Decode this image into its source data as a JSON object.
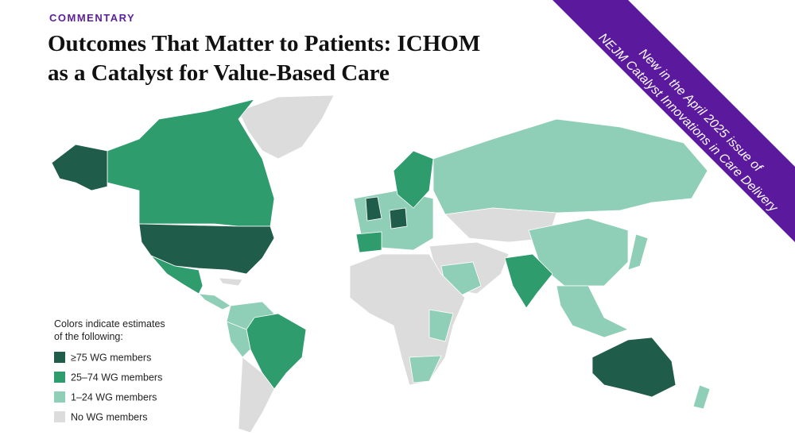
{
  "header": {
    "kicker": "COMMENTARY",
    "title": [
      "Outcomes That Matter to Patients: ICHOM",
      "as a Catalyst for Value-Based Care"
    ]
  },
  "banner": {
    "lines": [
      "New in the April 2025 issue of",
      "NEJM Catalyst Innovations in Care Delivery"
    ]
  },
  "legend": {
    "heading": [
      "Colors indicate estimates",
      "of the following:"
    ],
    "items": [
      {
        "label": "≥75 WG members",
        "color": "#1f5c4a"
      },
      {
        "label": "25–74 WG members",
        "color": "#2f9c6e"
      },
      {
        "label": "1–24 WG members",
        "color": "#8fceb7"
      },
      {
        "label": "No WG members",
        "color": "#dcdcdc"
      }
    ]
  }
}
